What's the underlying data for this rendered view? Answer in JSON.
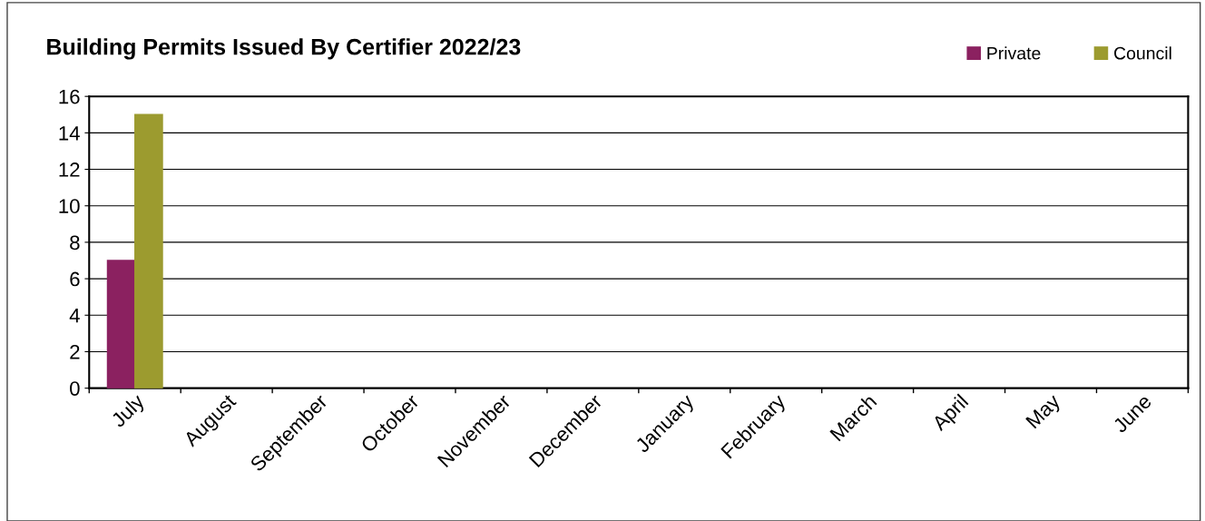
{
  "chart_data": {
    "type": "bar",
    "title": "Building Permits Issued By Certifier 2022/23",
    "categories": [
      "July",
      "August",
      "September",
      "October",
      "November",
      "December",
      "January",
      "February",
      "March",
      "April",
      "May",
      "June"
    ],
    "series": [
      {
        "name": "Private",
        "color": "#8b2160",
        "values": [
          7,
          null,
          null,
          null,
          null,
          null,
          null,
          null,
          null,
          null,
          null,
          null
        ]
      },
      {
        "name": "Council",
        "color": "#9c9b2f",
        "values": [
          15,
          null,
          null,
          null,
          null,
          null,
          null,
          null,
          null,
          null,
          null,
          null
        ]
      }
    ],
    "ylim": [
      0,
      16
    ],
    "yticks": [
      0,
      2,
      4,
      6,
      8,
      10,
      12,
      14,
      16
    ],
    "grid": "y",
    "legend": "top right"
  }
}
